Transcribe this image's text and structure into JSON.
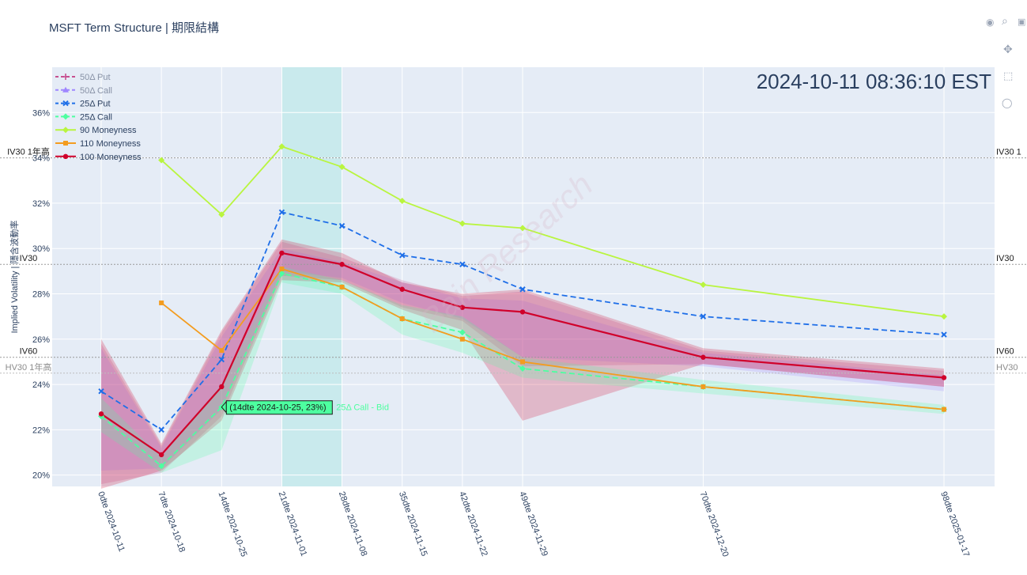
{
  "title": "MSFT Term Structure | 期限結構",
  "timestamp": "2024-10-11 08:36:10 EST",
  "watermark": "Bain Research",
  "modebar_icons": [
    "camera-icon",
    "zoom-icon",
    "pan-icon",
    "box-select-icon",
    "lasso-icon",
    "autoscale-icon"
  ],
  "colors": {
    "plot_bg": "#e5ecf6",
    "p50": "#c74f8f",
    "c50": "#9f86ff",
    "p25": "#1f6fe8",
    "c25": "#4dffa0",
    "m90": "#b9f53f",
    "m110": "#f39c1f",
    "m100": "#d0002a",
    "highlight": "#bfe9e9"
  },
  "chart_data": {
    "type": "line",
    "ylabel": "Implied Volatility | 隱含波動率",
    "ylim": [
      19.5,
      38.0
    ],
    "yticks": [
      20,
      22,
      24,
      26,
      28,
      30,
      32,
      34,
      36
    ],
    "ytick_labels": [
      "20%",
      "22%",
      "24%",
      "26%",
      "28%",
      "30%",
      "32%",
      "34%",
      "36%"
    ],
    "x_days": [
      0,
      7,
      14,
      21,
      28,
      35,
      42,
      49,
      70,
      98
    ],
    "categories": [
      "0dte 2024-10-11",
      "7dte 2024-10-18",
      "14dte 2024-10-25",
      "21dte 2024-11-01",
      "28dte 2024-11-08",
      "35dte 2024-11-15",
      "42dte 2024-11-22",
      "49dte 2024-11-29",
      "70dte 2024-12-20",
      "98dte 2025-01-17"
    ],
    "highlight_range_days": [
      21,
      28
    ],
    "series": [
      {
        "name": "50Δ Put",
        "key": "p50",
        "dash": "dash",
        "marker": "star",
        "values": [
          null,
          null,
          null,
          null,
          null,
          null,
          null,
          null,
          null,
          null
        ]
      },
      {
        "name": "50Δ Call",
        "key": "c50",
        "dash": "dash",
        "marker": "triangle",
        "values": [
          null,
          null,
          null,
          null,
          null,
          null,
          null,
          null,
          null,
          null
        ]
      },
      {
        "name": "25Δ Put",
        "key": "p25",
        "dash": "dash",
        "marker": "x",
        "values": [
          23.7,
          22.0,
          25.1,
          31.6,
          31.0,
          29.7,
          29.3,
          28.2,
          27.0,
          26.2
        ]
      },
      {
        "name": "25Δ Call",
        "key": "c25",
        "dash": "dash",
        "marker": "diamond",
        "values": [
          22.6,
          20.4,
          23.0,
          28.9,
          28.3,
          26.9,
          26.3,
          24.7,
          23.9,
          22.9
        ]
      },
      {
        "name": "90 Moneyness",
        "key": "m90",
        "dash": "solid",
        "marker": "diamond",
        "values": [
          null,
          33.9,
          31.5,
          34.5,
          33.6,
          32.1,
          31.1,
          30.9,
          28.4,
          27.0
        ]
      },
      {
        "name": "110 Moneyness",
        "key": "m110",
        "dash": "solid",
        "marker": "square",
        "values": [
          null,
          27.6,
          25.5,
          29.1,
          28.3,
          26.9,
          26.0,
          25.0,
          23.9,
          22.9
        ]
      },
      {
        "name": "100 Moneyness",
        "key": "m100",
        "dash": "solid",
        "marker": "circle",
        "values": [
          22.7,
          20.9,
          23.9,
          29.8,
          29.3,
          28.2,
          27.4,
          27.2,
          25.2,
          24.3
        ]
      }
    ],
    "bands": [
      {
        "key": "p50",
        "upper": [
          25.8,
          21.3,
          26.3,
          30.3,
          29.6,
          28.6,
          27.9,
          28.1,
          25.5,
          24.6
        ],
        "lower": [
          19.6,
          20.1,
          22.6,
          28.8,
          28.6,
          27.4,
          26.8,
          24.8,
          24.9,
          23.9
        ]
      },
      {
        "key": "c50",
        "upper": [
          25.6,
          21.2,
          26.1,
          30.0,
          29.4,
          28.5,
          27.8,
          27.7,
          25.4,
          24.4
        ],
        "lower": [
          20.2,
          20.3,
          22.9,
          29.0,
          28.7,
          27.6,
          26.9,
          25.2,
          24.8,
          23.7
        ]
      },
      {
        "key": "m100",
        "upper": [
          26.0,
          21.4,
          26.4,
          30.4,
          29.8,
          28.5,
          28.0,
          28.2,
          25.6,
          24.7
        ],
        "lower": [
          19.4,
          20.2,
          22.4,
          28.6,
          28.5,
          27.3,
          26.4,
          22.4,
          24.9,
          23.9
        ]
      },
      {
        "key": "c25",
        "upper": [
          23.4,
          20.8,
          24.0,
          29.2,
          28.6,
          27.5,
          27.0,
          25.2,
          24.2,
          23.1
        ],
        "lower": [
          21.9,
          20.1,
          21.1,
          28.5,
          28.0,
          26.2,
          25.4,
          24.3,
          23.6,
          22.7
        ]
      }
    ],
    "hlines": [
      {
        "value": 34.0,
        "left": "IV30 1年高",
        "right": "IV30 1",
        "color": "#9a9a9a",
        "tcolor": "#1a1a1a"
      },
      {
        "value": 29.3,
        "left": "IV30",
        "right": "IV30",
        "color": "#9a9a9a",
        "tcolor": "#1a1a1a"
      },
      {
        "value": 25.2,
        "left": "IV60",
        "right": "IV60",
        "color": "#9a9a9a",
        "tcolor": "#1a1a1a"
      },
      {
        "value": 24.5,
        "left": "HV30 1年高",
        "right": "HV30",
        "color": "#bdbdbd",
        "tcolor": "#8c8c8c"
      }
    ],
    "hover": {
      "text": "(14dte 2024-10-25, 23%)",
      "trace": "25Δ Call - Bid",
      "day": 14,
      "value": 23.0
    }
  }
}
